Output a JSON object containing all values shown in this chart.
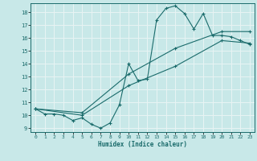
{
  "title": "",
  "xlabel": "Humidex (Indice chaleur)",
  "xlim": [
    -0.5,
    23.5
  ],
  "ylim": [
    8.7,
    18.7
  ],
  "xticks": [
    0,
    1,
    2,
    3,
    4,
    5,
    6,
    7,
    8,
    9,
    10,
    11,
    12,
    13,
    14,
    15,
    16,
    17,
    18,
    19,
    20,
    21,
    22,
    23
  ],
  "yticks": [
    9,
    10,
    11,
    12,
    13,
    14,
    15,
    16,
    17,
    18
  ],
  "background_color": "#c8e8e8",
  "grid_color": "#e8f4f4",
  "line_color": "#1a6b6b",
  "line1_x": [
    0,
    1,
    2,
    3,
    4,
    5,
    6,
    7,
    8,
    9,
    10,
    11,
    12,
    13,
    14,
    15,
    16,
    17,
    18,
    19,
    20,
    21,
    22,
    23
  ],
  "line1_y": [
    10.5,
    10.1,
    10.1,
    10.0,
    9.6,
    9.8,
    9.3,
    9.0,
    9.4,
    10.8,
    14.0,
    12.7,
    12.8,
    17.4,
    18.3,
    18.5,
    17.9,
    16.7,
    17.9,
    16.2,
    16.2,
    16.1,
    15.8,
    15.5
  ],
  "line2_x": [
    0,
    5,
    10,
    15,
    20,
    23
  ],
  "line2_y": [
    10.5,
    10.0,
    12.3,
    13.8,
    15.8,
    15.6
  ],
  "line3_x": [
    0,
    5,
    10,
    15,
    20,
    23
  ],
  "line3_y": [
    10.5,
    10.2,
    13.2,
    15.2,
    16.5,
    16.5
  ]
}
